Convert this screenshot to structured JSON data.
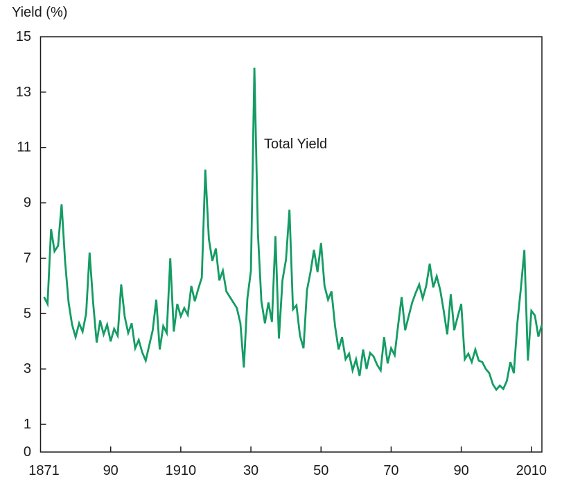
{
  "page": {
    "background": "#ffffff"
  },
  "chart": {
    "y_axis_title": "Yield (%)",
    "annotation": "Total Yield",
    "line_color": "#149c64",
    "axis_color": "#1b1b1b",
    "y_ticks": [
      {
        "value": 15,
        "label": "15",
        "tick": false
      },
      {
        "value": 13,
        "label": "13",
        "tick": true
      },
      {
        "value": 11,
        "label": "11",
        "tick": true
      },
      {
        "value": 9,
        "label": "9",
        "tick": true
      },
      {
        "value": 7,
        "label": "7",
        "tick": true
      },
      {
        "value": 5,
        "label": "5",
        "tick": true
      },
      {
        "value": 3,
        "label": "3",
        "tick": true
      },
      {
        "value": 1,
        "label": "1",
        "tick": true
      },
      {
        "value": 0,
        "label": "0",
        "tick": false
      }
    ],
    "x_ticks": [
      {
        "year": 1871,
        "label": "1871",
        "tick": false
      },
      {
        "year": 1890,
        "label": "90",
        "tick": true
      },
      {
        "year": 1910,
        "label": "1910",
        "tick": true
      },
      {
        "year": 1930,
        "label": "30",
        "tick": true
      },
      {
        "year": 1950,
        "label": "50",
        "tick": true
      },
      {
        "year": 1970,
        "label": "70",
        "tick": true
      },
      {
        "year": 1990,
        "label": "90",
        "tick": true
      },
      {
        "year": 2010,
        "label": "2010",
        "tick": true
      }
    ]
  },
  "chart_data": {
    "type": "line",
    "title": "",
    "xlabel": "",
    "ylabel": "Yield (%)",
    "xlim": [
      1870,
      2013
    ],
    "ylim": [
      0,
      15
    ],
    "grid": false,
    "legend_position": "inline-annotation",
    "series": [
      {
        "name": "Total Yield",
        "years": [
          1871,
          1872,
          1873,
          1874,
          1875,
          1876,
          1877,
          1878,
          1879,
          1880,
          1881,
          1882,
          1883,
          1884,
          1885,
          1886,
          1887,
          1888,
          1889,
          1890,
          1891,
          1892,
          1893,
          1894,
          1895,
          1896,
          1897,
          1898,
          1899,
          1900,
          1901,
          1902,
          1903,
          1904,
          1905,
          1906,
          1907,
          1908,
          1909,
          1910,
          1911,
          1912,
          1913,
          1914,
          1915,
          1916,
          1917,
          1918,
          1919,
          1920,
          1921,
          1922,
          1923,
          1924,
          1925,
          1926,
          1927,
          1928,
          1929,
          1930,
          1931,
          1932,
          1933,
          1934,
          1935,
          1936,
          1937,
          1938,
          1939,
          1940,
          1941,
          1942,
          1943,
          1944,
          1945,
          1946,
          1947,
          1948,
          1949,
          1950,
          1951,
          1952,
          1953,
          1954,
          1955,
          1956,
          1957,
          1958,
          1959,
          1960,
          1961,
          1962,
          1963,
          1964,
          1965,
          1966,
          1967,
          1968,
          1969,
          1970,
          1971,
          1972,
          1973,
          1974,
          1975,
          1976,
          1977,
          1978,
          1979,
          1980,
          1981,
          1982,
          1983,
          1984,
          1985,
          1986,
          1987,
          1988,
          1989,
          1990,
          1991,
          1992,
          1993,
          1994,
          1995,
          1996,
          1997,
          1998,
          1999,
          2000,
          2001,
          2002,
          2003,
          2004,
          2005,
          2006,
          2007,
          2008,
          2009,
          2010,
          2011,
          2012,
          2013
        ],
        "values": [
          5.6,
          5.35,
          8.05,
          7.25,
          7.45,
          8.95,
          6.9,
          5.4,
          4.6,
          4.15,
          4.65,
          4.35,
          5.0,
          7.2,
          5.4,
          3.95,
          4.75,
          4.25,
          4.6,
          4.0,
          4.45,
          4.2,
          6.05,
          4.9,
          4.3,
          4.65,
          3.75,
          4.05,
          3.6,
          3.3,
          3.85,
          4.4,
          5.5,
          3.7,
          4.55,
          4.3,
          7.0,
          4.35,
          5.35,
          4.9,
          5.2,
          4.95,
          6.0,
          5.45,
          5.9,
          6.3,
          10.2,
          7.7,
          6.9,
          7.35,
          6.2,
          6.55,
          5.8,
          5.6,
          5.4,
          5.2,
          4.65,
          3.05,
          5.55,
          6.55,
          13.88,
          7.9,
          5.45,
          4.65,
          5.4,
          4.7,
          7.8,
          4.1,
          6.2,
          6.95,
          8.75,
          5.15,
          5.3,
          4.2,
          3.75,
          5.85,
          6.5,
          7.3,
          6.5,
          7.55,
          6.0,
          5.5,
          5.8,
          4.55,
          3.7,
          4.15,
          3.35,
          3.55,
          2.95,
          3.35,
          2.75,
          3.7,
          3.0,
          3.58,
          3.45,
          3.15,
          2.95,
          4.15,
          3.2,
          3.75,
          3.5,
          4.6,
          5.6,
          4.4,
          4.9,
          5.4,
          5.75,
          6.05,
          5.55,
          6.0,
          6.8,
          5.95,
          6.35,
          5.85,
          5.1,
          4.25,
          5.7,
          4.4,
          4.9,
          5.35,
          3.35,
          3.55,
          3.25,
          3.7,
          3.3,
          3.25,
          3.0,
          2.85,
          2.45,
          2.25,
          2.4,
          2.28,
          2.57,
          3.25,
          2.85,
          4.67,
          5.9,
          7.3,
          3.3,
          5.1,
          4.93,
          4.17,
          4.6
        ]
      }
    ]
  }
}
